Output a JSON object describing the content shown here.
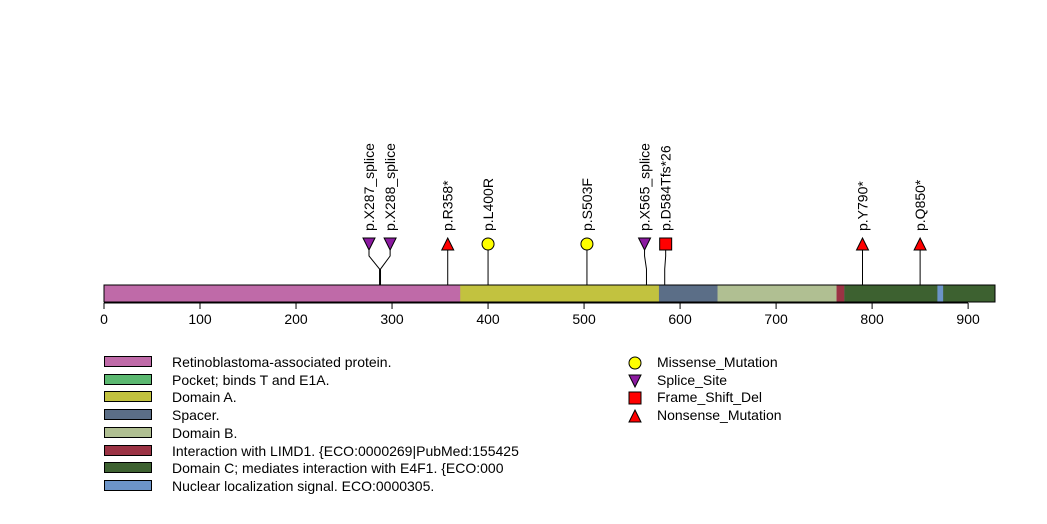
{
  "protein_length": 928,
  "axis": {
    "ticks": [
      0,
      100,
      200,
      300,
      400,
      500,
      600,
      700,
      800,
      900
    ]
  },
  "domains": [
    {
      "label": "Retinoblastoma-associated protein.",
      "start": 1,
      "end": 928,
      "color": "#bf6aa8"
    },
    {
      "label": "Pocket; binds T and E1A.",
      "start": 0,
      "end": 0,
      "color": "#5bb870"
    },
    {
      "label": "Domain A.",
      "start": 372,
      "end": 578,
      "color": "#c2c23f"
    },
    {
      "label": "Spacer.",
      "start": 579,
      "end": 639,
      "color": "#5b6e87"
    },
    {
      "label": "Domain B.",
      "start": 640,
      "end": 763,
      "color": "#b0bf92"
    },
    {
      "label": "Interaction with LIMD1. {ECO:0000269|PubMed:155425",
      "start": 764,
      "end": 771,
      "color": "#9b3344"
    },
    {
      "label": "Domain C; mediates interaction with E4F1. {ECO:000",
      "start": 772,
      "end": 928,
      "color": "#3d6130"
    },
    {
      "label": "Nuclear localization signal. ECO:0000305.",
      "start": 869,
      "end": 874,
      "color": "#6c94c8"
    }
  ],
  "mutation_types": [
    {
      "label": "Missense_Mutation",
      "shape": "circle",
      "color": "#ffff00"
    },
    {
      "label": "Splice_Site",
      "shape": "triangle-down",
      "color": "#8b1aa0"
    },
    {
      "label": "Frame_Shift_Del",
      "shape": "square",
      "color": "#ff0000"
    },
    {
      "label": "Nonsense_Mutation",
      "shape": "triangle-up",
      "color": "#ff0000"
    }
  ],
  "mutations": [
    {
      "label": "p.X287_splice",
      "pos": 287,
      "type": "Splice_Site",
      "marker_pos": 276
    },
    {
      "label": "p.X288_splice",
      "pos": 288,
      "type": "Splice_Site",
      "marker_pos": 298
    },
    {
      "label": "p.R358*",
      "pos": 358,
      "type": "Nonsense_Mutation",
      "marker_pos": 358
    },
    {
      "label": "p.L400R",
      "pos": 400,
      "type": "Missense_Mutation",
      "marker_pos": 400
    },
    {
      "label": "p.S503F",
      "pos": 503,
      "type": "Missense_Mutation",
      "marker_pos": 503
    },
    {
      "label": "p.X565_splice",
      "pos": 565,
      "type": "Splice_Site",
      "marker_pos": 563
    },
    {
      "label": "p.D584Tfs*26",
      "pos": 584,
      "type": "Frame_Shift_Del",
      "marker_pos": 585
    },
    {
      "label": "p.Y790*",
      "pos": 790,
      "type": "Nonsense_Mutation",
      "marker_pos": 790
    },
    {
      "label": "p.Q850*",
      "pos": 850,
      "type": "Nonsense_Mutation",
      "marker_pos": 850
    }
  ]
}
